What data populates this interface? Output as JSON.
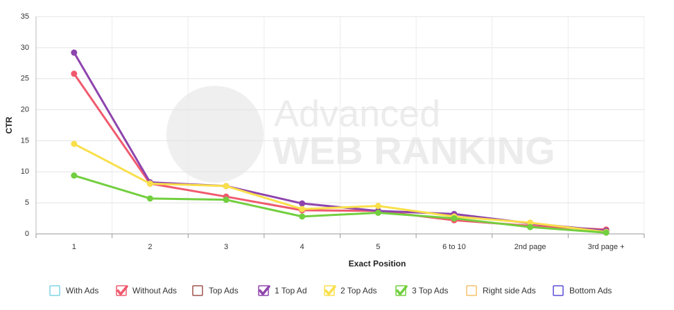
{
  "chart_data": {
    "type": "line",
    "watermark": [
      "Advanced",
      "WEB RANKING"
    ],
    "xlabel": "Exact Position",
    "ylabel": "CTR",
    "categories": [
      "1",
      "2",
      "3",
      "4",
      "5",
      "6 to 10",
      "2nd page",
      "3rd page +"
    ],
    "ylim": [
      0,
      35
    ],
    "yticks": [
      0,
      5,
      10,
      15,
      20,
      25,
      30,
      35
    ],
    "grid": true,
    "legend": "bottom",
    "series": [
      {
        "name": "With Ads",
        "color": "#7fd3e6",
        "visible": false,
        "values": null
      },
      {
        "name": "Without Ads",
        "color": "#f05a6e",
        "visible": true,
        "values": [
          25.8,
          8.1,
          6.0,
          3.8,
          3.7,
          2.2,
          1.3,
          0.7
        ]
      },
      {
        "name": "Top Ads",
        "color": "#a0524d",
        "visible": false,
        "values": null
      },
      {
        "name": "1 Top Ad",
        "color": "#8e44ad",
        "visible": true,
        "values": [
          29.2,
          8.3,
          7.7,
          4.9,
          3.7,
          3.2,
          1.7,
          0.5
        ]
      },
      {
        "name": "2 Top Ads",
        "color": "#f9df4a",
        "visible": true,
        "values": [
          14.5,
          8.1,
          7.7,
          4.0,
          4.5,
          2.8,
          1.8,
          0.3
        ]
      },
      {
        "name": "3 Top Ads",
        "color": "#72cf3f",
        "visible": true,
        "values": [
          9.4,
          5.7,
          5.5,
          2.8,
          3.4,
          2.5,
          1.1,
          0.2
        ]
      },
      {
        "name": "Right side Ads",
        "color": "#f5c26b",
        "visible": false,
        "values": null
      },
      {
        "name": "Bottom Ads",
        "color": "#5b4fd6",
        "visible": false,
        "values": null
      }
    ]
  }
}
